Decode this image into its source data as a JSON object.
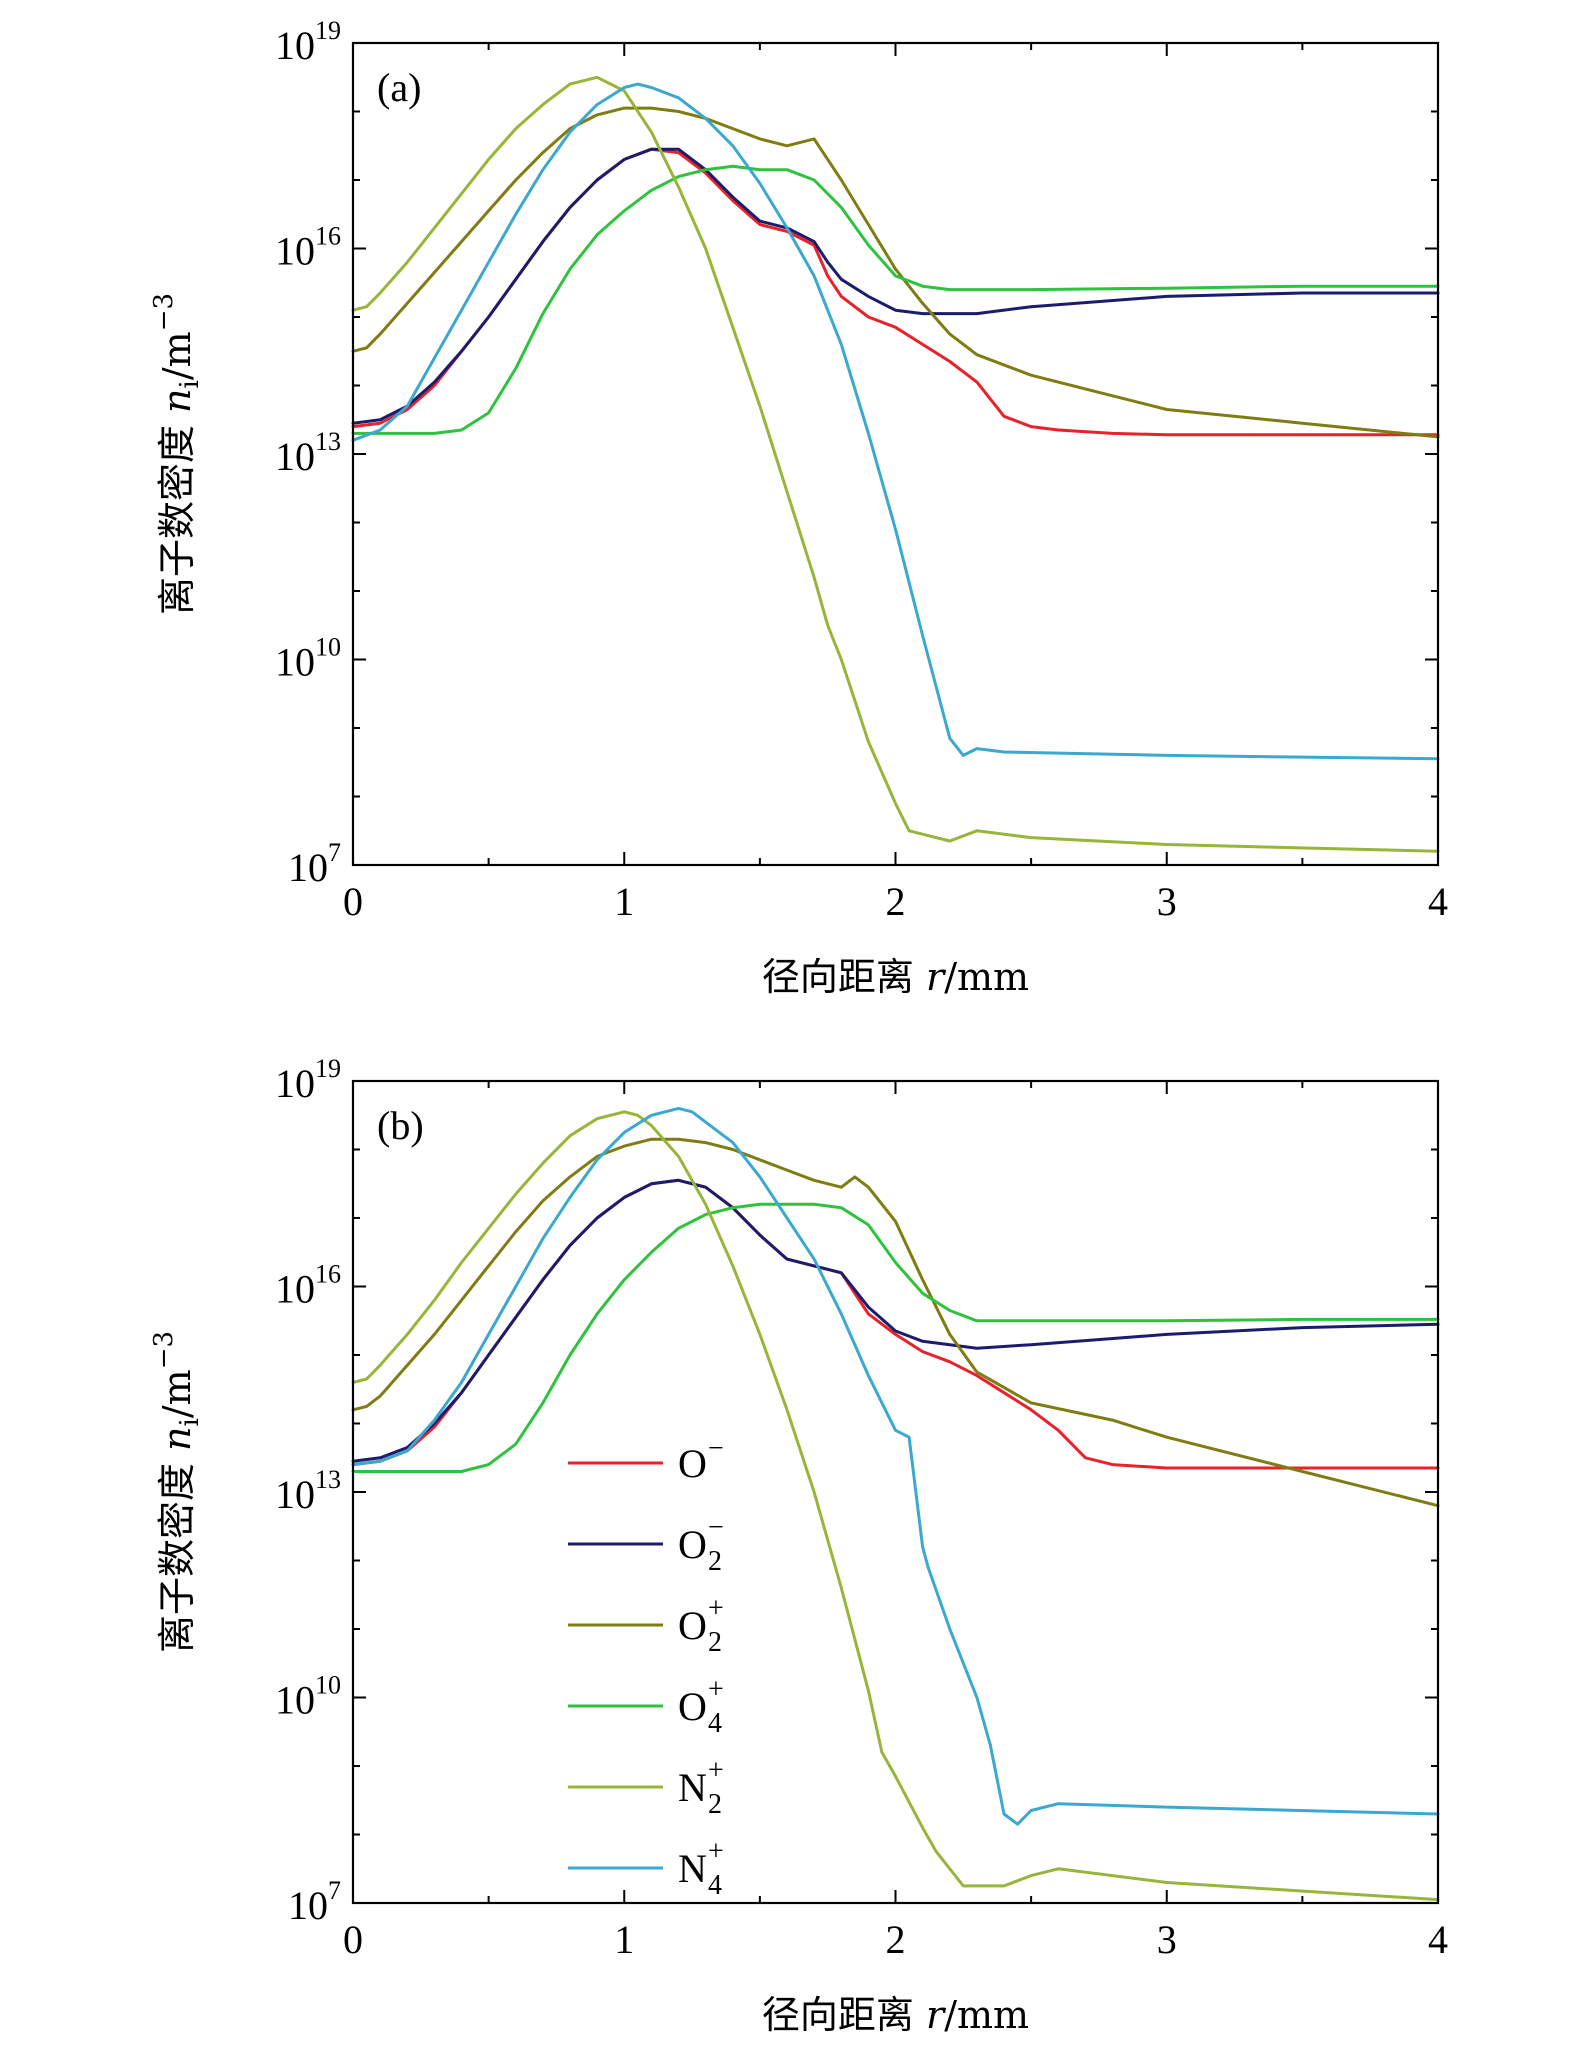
{
  "chart_data": [
    {
      "type": "line",
      "panel_label": "(a)",
      "xlabel_cn": "径向距离",
      "xlabel_var": "r",
      "xlabel_unit": "/mm",
      "ylabel_cn": "离子数密度",
      "ylabel_var": "n",
      "ylabel_sub": "i",
      "ylabel_unit": "/m",
      "ylabel_unit_exp": "−3",
      "xlim": [
        0,
        4
      ],
      "xticks": [
        "0",
        "1",
        "2",
        "3",
        "4"
      ],
      "ylim_log10": [
        7,
        19
      ],
      "yticks": [
        {
          "base": "10",
          "exp": "7",
          "value": 7
        },
        {
          "base": "10",
          "exp": "10",
          "value": 10
        },
        {
          "base": "10",
          "exp": "13",
          "value": 13
        },
        {
          "base": "10",
          "exp": "16",
          "value": 16
        },
        {
          "base": "10",
          "exp": "19",
          "value": 19
        }
      ],
      "scale": "log10",
      "legend": false,
      "series": [
        {
          "name": "O⁻",
          "color": "#e8212a",
          "x": [
            0,
            0.1,
            0.2,
            0.3,
            0.4,
            0.5,
            0.6,
            0.7,
            0.8,
            0.9,
            1.0,
            1.1,
            1.2,
            1.3,
            1.4,
            1.5,
            1.6,
            1.7,
            1.75,
            1.8,
            1.9,
            2.0,
            2.1,
            2.2,
            2.3,
            2.4,
            2.5,
            2.6,
            2.8,
            3.0,
            3.5,
            4.0
          ],
          "log_y": [
            13.4,
            13.45,
            13.65,
            14.0,
            14.5,
            15.0,
            15.55,
            16.1,
            16.6,
            17.0,
            17.3,
            17.45,
            17.4,
            17.1,
            16.7,
            16.35,
            16.25,
            16.05,
            15.6,
            15.3,
            15.0,
            14.85,
            14.6,
            14.35,
            14.05,
            13.55,
            13.4,
            13.35,
            13.3,
            13.28,
            13.28,
            13.28
          ]
        },
        {
          "name": "O₂⁻",
          "color": "#1c1c6e",
          "x": [
            0,
            0.1,
            0.2,
            0.3,
            0.4,
            0.5,
            0.6,
            0.7,
            0.8,
            0.9,
            1.0,
            1.1,
            1.2,
            1.3,
            1.4,
            1.5,
            1.6,
            1.7,
            1.75,
            1.8,
            1.9,
            2.0,
            2.1,
            2.2,
            2.3,
            2.5,
            3.0,
            3.5,
            4.0
          ],
          "log_y": [
            13.45,
            13.5,
            13.7,
            14.05,
            14.5,
            15.0,
            15.55,
            16.1,
            16.6,
            17.0,
            17.3,
            17.45,
            17.45,
            17.15,
            16.75,
            16.4,
            16.3,
            16.1,
            15.8,
            15.55,
            15.3,
            15.1,
            15.05,
            15.05,
            15.05,
            15.15,
            15.3,
            15.35,
            15.35
          ]
        },
        {
          "name": "O₂⁺",
          "color": "#7f7c12",
          "x": [
            0,
            0.05,
            0.1,
            0.2,
            0.3,
            0.4,
            0.5,
            0.6,
            0.7,
            0.8,
            0.9,
            1.0,
            1.1,
            1.2,
            1.3,
            1.4,
            1.5,
            1.6,
            1.7,
            1.75,
            1.8,
            1.9,
            2.0,
            2.1,
            2.2,
            2.3,
            2.5,
            2.8,
            3.0,
            3.5,
            4.0
          ],
          "log_y": [
            14.5,
            14.55,
            14.75,
            15.2,
            15.65,
            16.1,
            16.55,
            17.0,
            17.4,
            17.75,
            17.95,
            18.05,
            18.05,
            18.0,
            17.9,
            17.75,
            17.6,
            17.5,
            17.6,
            17.3,
            17.0,
            16.35,
            15.7,
            15.2,
            14.75,
            14.45,
            14.15,
            13.85,
            13.65,
            13.45,
            13.25
          ]
        },
        {
          "name": "O₄⁺",
          "color": "#2ec23e",
          "x": [
            0,
            0.3,
            0.4,
            0.5,
            0.6,
            0.7,
            0.8,
            0.9,
            1.0,
            1.1,
            1.2,
            1.3,
            1.4,
            1.5,
            1.6,
            1.7,
            1.8,
            1.9,
            2.0,
            2.1,
            2.2,
            2.5,
            3.0,
            3.5,
            4.0
          ],
          "log_y": [
            13.3,
            13.3,
            13.35,
            13.6,
            14.25,
            15.05,
            15.7,
            16.2,
            16.55,
            16.85,
            17.05,
            17.15,
            17.2,
            17.15,
            17.15,
            17.0,
            16.6,
            16.05,
            15.6,
            15.45,
            15.4,
            15.4,
            15.42,
            15.45,
            15.45
          ]
        },
        {
          "name": "N₂⁺",
          "color": "#98b539",
          "x": [
            0,
            0.05,
            0.1,
            0.2,
            0.3,
            0.4,
            0.5,
            0.6,
            0.7,
            0.8,
            0.9,
            1.0,
            1.1,
            1.2,
            1.3,
            1.4,
            1.5,
            1.6,
            1.7,
            1.75,
            1.8,
            1.9,
            2.0,
            2.05,
            2.1,
            2.2,
            2.3,
            2.5,
            3.0,
            4.0
          ],
          "log_y": [
            15.1,
            15.15,
            15.35,
            15.8,
            16.3,
            16.8,
            17.3,
            17.75,
            18.1,
            18.4,
            18.5,
            18.3,
            17.7,
            16.9,
            16.0,
            14.85,
            13.7,
            12.45,
            11.2,
            10.5,
            10.0,
            8.8,
            7.9,
            7.5,
            7.45,
            7.35,
            7.5,
            7.4,
            7.3,
            7.2
          ]
        },
        {
          "name": "N₄⁺",
          "color": "#3aa8cf",
          "x": [
            0,
            0.1,
            0.2,
            0.3,
            0.4,
            0.5,
            0.6,
            0.7,
            0.8,
            0.9,
            1.0,
            1.05,
            1.1,
            1.2,
            1.3,
            1.4,
            1.5,
            1.6,
            1.7,
            1.8,
            1.9,
            2.0,
            2.1,
            2.2,
            2.25,
            2.3,
            2.4,
            3.0,
            4.0
          ],
          "log_y": [
            13.2,
            13.35,
            13.7,
            14.4,
            15.1,
            15.8,
            16.5,
            17.15,
            17.7,
            18.1,
            18.35,
            18.4,
            18.35,
            18.2,
            17.9,
            17.5,
            16.95,
            16.3,
            15.6,
            14.6,
            13.3,
            11.9,
            10.35,
            8.85,
            8.6,
            8.7,
            8.65,
            8.6,
            8.55
          ]
        }
      ]
    },
    {
      "type": "line",
      "panel_label": "(b)",
      "xlabel_cn": "径向距离",
      "xlabel_var": "r",
      "xlabel_unit": "/mm",
      "ylabel_cn": "离子数密度",
      "ylabel_var": "n",
      "ylabel_sub": "i",
      "ylabel_unit": "/m",
      "ylabel_unit_exp": "−3",
      "xlim": [
        0,
        4
      ],
      "xticks": [
        "0",
        "1",
        "2",
        "3",
        "4"
      ],
      "ylim_log10": [
        7,
        19
      ],
      "yticks": [
        {
          "base": "10",
          "exp": "7",
          "value": 7
        },
        {
          "base": "10",
          "exp": "10",
          "value": 10
        },
        {
          "base": "10",
          "exp": "13",
          "value": 13
        },
        {
          "base": "10",
          "exp": "16",
          "value": 16
        },
        {
          "base": "10",
          "exp": "19",
          "value": 19
        }
      ],
      "scale": "log10",
      "legend": true,
      "legend_position": "center-left",
      "series": [
        {
          "name": "O⁻",
          "label": "O",
          "sub": "",
          "sup": "−",
          "color": "#e8212a",
          "x": [
            0,
            0.1,
            0.2,
            0.3,
            0.4,
            0.5,
            0.6,
            0.7,
            0.8,
            0.9,
            1.0,
            1.1,
            1.2,
            1.3,
            1.4,
            1.5,
            1.6,
            1.7,
            1.8,
            1.9,
            2.0,
            2.1,
            2.2,
            2.3,
            2.4,
            2.5,
            2.6,
            2.7,
            2.8,
            3.0,
            3.5,
            4.0
          ],
          "log_y": [
            13.4,
            13.45,
            13.6,
            13.95,
            14.45,
            15.0,
            15.55,
            16.1,
            16.6,
            17.0,
            17.3,
            17.5,
            17.55,
            17.45,
            17.15,
            16.75,
            16.4,
            16.3,
            16.2,
            15.6,
            15.3,
            15.05,
            14.9,
            14.7,
            14.45,
            14.2,
            13.9,
            13.5,
            13.4,
            13.35,
            13.35,
            13.35
          ]
        },
        {
          "name": "O₂⁻",
          "label": "O",
          "sub": "2",
          "sup": "−",
          "color": "#1c1c6e",
          "x": [
            0,
            0.1,
            0.2,
            0.3,
            0.4,
            0.5,
            0.6,
            0.7,
            0.8,
            0.9,
            1.0,
            1.1,
            1.2,
            1.3,
            1.4,
            1.5,
            1.6,
            1.7,
            1.8,
            1.9,
            2.0,
            2.1,
            2.2,
            2.3,
            2.5,
            3.0,
            3.5,
            4.0
          ],
          "log_y": [
            13.45,
            13.5,
            13.65,
            14.0,
            14.45,
            15.0,
            15.55,
            16.1,
            16.6,
            17.0,
            17.3,
            17.5,
            17.55,
            17.45,
            17.15,
            16.75,
            16.4,
            16.3,
            16.2,
            15.7,
            15.35,
            15.2,
            15.15,
            15.1,
            15.15,
            15.3,
            15.4,
            15.45
          ]
        },
        {
          "name": "O₂⁺",
          "label": "O",
          "sub": "2",
          "sup": "+",
          "color": "#7f7c12",
          "x": [
            0,
            0.05,
            0.1,
            0.2,
            0.3,
            0.4,
            0.5,
            0.6,
            0.7,
            0.8,
            0.9,
            1.0,
            1.1,
            1.2,
            1.3,
            1.4,
            1.5,
            1.6,
            1.7,
            1.8,
            1.85,
            1.9,
            2.0,
            2.1,
            2.2,
            2.3,
            2.5,
            2.8,
            3.0,
            3.5,
            4.0
          ],
          "log_y": [
            14.2,
            14.25,
            14.4,
            14.85,
            15.3,
            15.8,
            16.3,
            16.8,
            17.25,
            17.6,
            17.9,
            18.05,
            18.15,
            18.15,
            18.1,
            18.0,
            17.85,
            17.7,
            17.55,
            17.45,
            17.6,
            17.45,
            16.95,
            16.1,
            15.3,
            14.75,
            14.3,
            14.05,
            13.8,
            13.3,
            12.8
          ]
        },
        {
          "name": "O₄⁺",
          "label": "O",
          "sub": "4",
          "sup": "+",
          "color": "#2ec23e",
          "x": [
            0,
            0.4,
            0.5,
            0.6,
            0.7,
            0.8,
            0.9,
            1.0,
            1.1,
            1.2,
            1.3,
            1.4,
            1.5,
            1.6,
            1.7,
            1.8,
            1.9,
            2.0,
            2.1,
            2.2,
            2.3,
            2.5,
            3.0,
            3.5,
            4.0
          ],
          "log_y": [
            13.3,
            13.3,
            13.4,
            13.7,
            14.3,
            15.0,
            15.6,
            16.1,
            16.5,
            16.85,
            17.05,
            17.15,
            17.2,
            17.2,
            17.2,
            17.15,
            16.9,
            16.35,
            15.9,
            15.65,
            15.5,
            15.5,
            15.5,
            15.52,
            15.52
          ]
        },
        {
          "name": "N₂⁺",
          "label": "N",
          "sub": "2",
          "sup": "+",
          "color": "#98b539",
          "x": [
            0,
            0.05,
            0.1,
            0.2,
            0.3,
            0.4,
            0.5,
            0.6,
            0.7,
            0.8,
            0.9,
            1.0,
            1.05,
            1.1,
            1.2,
            1.3,
            1.4,
            1.5,
            1.6,
            1.7,
            1.8,
            1.9,
            1.95,
            2.0,
            2.1,
            2.15,
            2.2,
            2.25,
            2.4,
            2.5,
            2.6,
            3.0,
            4.0
          ],
          "log_y": [
            14.6,
            14.65,
            14.85,
            15.3,
            15.8,
            16.35,
            16.85,
            17.35,
            17.8,
            18.2,
            18.45,
            18.55,
            18.5,
            18.35,
            17.9,
            17.2,
            16.3,
            15.3,
            14.2,
            13.0,
            11.6,
            10.1,
            9.2,
            8.85,
            8.1,
            7.75,
            7.5,
            7.25,
            7.25,
            7.4,
            7.5,
            7.3,
            7.05
          ]
        },
        {
          "name": "N₄⁺",
          "label": "N",
          "sub": "4",
          "sup": "+",
          "color": "#3aa8cf",
          "x": [
            0,
            0.1,
            0.2,
            0.3,
            0.4,
            0.5,
            0.6,
            0.7,
            0.8,
            0.9,
            1.0,
            1.1,
            1.2,
            1.25,
            1.3,
            1.4,
            1.5,
            1.6,
            1.7,
            1.8,
            1.9,
            2.0,
            2.05,
            2.1,
            2.12,
            2.2,
            2.3,
            2.35,
            2.4,
            2.45,
            2.5,
            2.6,
            3.0,
            4.0
          ],
          "log_y": [
            13.4,
            13.45,
            13.6,
            14.05,
            14.6,
            15.3,
            16.0,
            16.7,
            17.3,
            17.85,
            18.25,
            18.5,
            18.6,
            18.55,
            18.4,
            18.1,
            17.6,
            17.0,
            16.4,
            15.6,
            14.7,
            13.9,
            13.8,
            12.2,
            11.9,
            11.0,
            10.0,
            9.3,
            8.3,
            8.15,
            8.35,
            8.45,
            8.4,
            8.3
          ]
        }
      ]
    }
  ]
}
